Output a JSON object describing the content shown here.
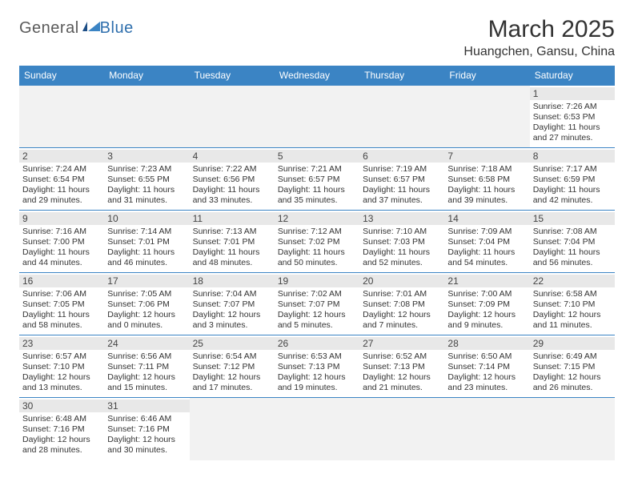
{
  "logo": {
    "text1": "General",
    "text2": "Blue"
  },
  "title": "March 2025",
  "location": "Huangchen, Gansu, China",
  "colors": {
    "header_bg": "#3b84c4",
    "header_text": "#ffffff",
    "cell_border": "#3b84c4",
    "daynum_bg": "#e8e8e8",
    "empty_bg": "#f2f2f2",
    "logo_blue": "#2f6fad",
    "logo_gray": "#5a5a5a"
  },
  "weekdays": [
    "Sunday",
    "Monday",
    "Tuesday",
    "Wednesday",
    "Thursday",
    "Friday",
    "Saturday"
  ],
  "weeks": [
    [
      null,
      null,
      null,
      null,
      null,
      null,
      {
        "n": "1",
        "sunrise": "7:26 AM",
        "sunset": "6:53 PM",
        "daylight": "11 hours and 27 minutes."
      }
    ],
    [
      {
        "n": "2",
        "sunrise": "7:24 AM",
        "sunset": "6:54 PM",
        "daylight": "11 hours and 29 minutes."
      },
      {
        "n": "3",
        "sunrise": "7:23 AM",
        "sunset": "6:55 PM",
        "daylight": "11 hours and 31 minutes."
      },
      {
        "n": "4",
        "sunrise": "7:22 AM",
        "sunset": "6:56 PM",
        "daylight": "11 hours and 33 minutes."
      },
      {
        "n": "5",
        "sunrise": "7:21 AM",
        "sunset": "6:57 PM",
        "daylight": "11 hours and 35 minutes."
      },
      {
        "n": "6",
        "sunrise": "7:19 AM",
        "sunset": "6:57 PM",
        "daylight": "11 hours and 37 minutes."
      },
      {
        "n": "7",
        "sunrise": "7:18 AM",
        "sunset": "6:58 PM",
        "daylight": "11 hours and 39 minutes."
      },
      {
        "n": "8",
        "sunrise": "7:17 AM",
        "sunset": "6:59 PM",
        "daylight": "11 hours and 42 minutes."
      }
    ],
    [
      {
        "n": "9",
        "sunrise": "7:16 AM",
        "sunset": "7:00 PM",
        "daylight": "11 hours and 44 minutes."
      },
      {
        "n": "10",
        "sunrise": "7:14 AM",
        "sunset": "7:01 PM",
        "daylight": "11 hours and 46 minutes."
      },
      {
        "n": "11",
        "sunrise": "7:13 AM",
        "sunset": "7:01 PM",
        "daylight": "11 hours and 48 minutes."
      },
      {
        "n": "12",
        "sunrise": "7:12 AM",
        "sunset": "7:02 PM",
        "daylight": "11 hours and 50 minutes."
      },
      {
        "n": "13",
        "sunrise": "7:10 AM",
        "sunset": "7:03 PM",
        "daylight": "11 hours and 52 minutes."
      },
      {
        "n": "14",
        "sunrise": "7:09 AM",
        "sunset": "7:04 PM",
        "daylight": "11 hours and 54 minutes."
      },
      {
        "n": "15",
        "sunrise": "7:08 AM",
        "sunset": "7:04 PM",
        "daylight": "11 hours and 56 minutes."
      }
    ],
    [
      {
        "n": "16",
        "sunrise": "7:06 AM",
        "sunset": "7:05 PM",
        "daylight": "11 hours and 58 minutes."
      },
      {
        "n": "17",
        "sunrise": "7:05 AM",
        "sunset": "7:06 PM",
        "daylight": "12 hours and 0 minutes."
      },
      {
        "n": "18",
        "sunrise": "7:04 AM",
        "sunset": "7:07 PM",
        "daylight": "12 hours and 3 minutes."
      },
      {
        "n": "19",
        "sunrise": "7:02 AM",
        "sunset": "7:07 PM",
        "daylight": "12 hours and 5 minutes."
      },
      {
        "n": "20",
        "sunrise": "7:01 AM",
        "sunset": "7:08 PM",
        "daylight": "12 hours and 7 minutes."
      },
      {
        "n": "21",
        "sunrise": "7:00 AM",
        "sunset": "7:09 PM",
        "daylight": "12 hours and 9 minutes."
      },
      {
        "n": "22",
        "sunrise": "6:58 AM",
        "sunset": "7:10 PM",
        "daylight": "12 hours and 11 minutes."
      }
    ],
    [
      {
        "n": "23",
        "sunrise": "6:57 AM",
        "sunset": "7:10 PM",
        "daylight": "12 hours and 13 minutes."
      },
      {
        "n": "24",
        "sunrise": "6:56 AM",
        "sunset": "7:11 PM",
        "daylight": "12 hours and 15 minutes."
      },
      {
        "n": "25",
        "sunrise": "6:54 AM",
        "sunset": "7:12 PM",
        "daylight": "12 hours and 17 minutes."
      },
      {
        "n": "26",
        "sunrise": "6:53 AM",
        "sunset": "7:13 PM",
        "daylight": "12 hours and 19 minutes."
      },
      {
        "n": "27",
        "sunrise": "6:52 AM",
        "sunset": "7:13 PM",
        "daylight": "12 hours and 21 minutes."
      },
      {
        "n": "28",
        "sunrise": "6:50 AM",
        "sunset": "7:14 PM",
        "daylight": "12 hours and 23 minutes."
      },
      {
        "n": "29",
        "sunrise": "6:49 AM",
        "sunset": "7:15 PM",
        "daylight": "12 hours and 26 minutes."
      }
    ],
    [
      {
        "n": "30",
        "sunrise": "6:48 AM",
        "sunset": "7:16 PM",
        "daylight": "12 hours and 28 minutes."
      },
      {
        "n": "31",
        "sunrise": "6:46 AM",
        "sunset": "7:16 PM",
        "daylight": "12 hours and 30 minutes."
      },
      null,
      null,
      null,
      null,
      null
    ]
  ],
  "labels": {
    "sunrise": "Sunrise: ",
    "sunset": "Sunset: ",
    "daylight": "Daylight: "
  }
}
